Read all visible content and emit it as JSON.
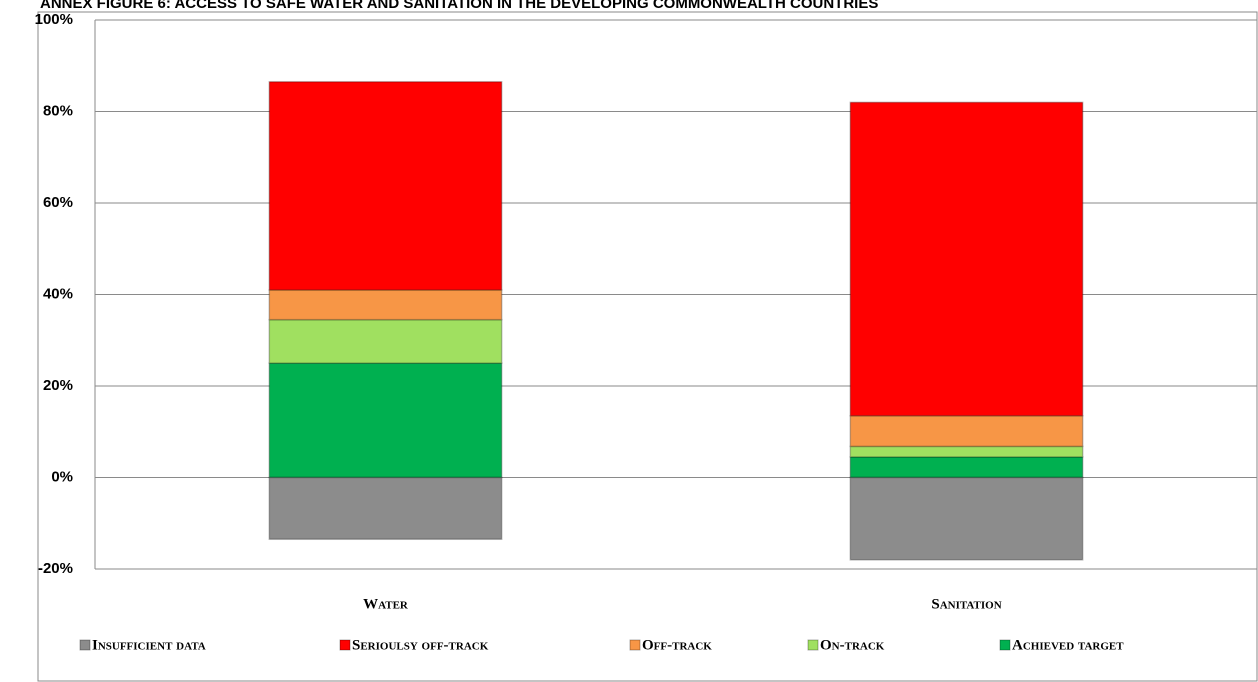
{
  "chart_data": {
    "type": "stacked_bar",
    "title": "ANNEX FIGURE 6: ACCESS TO SAFE WATER AND SANITATION IN THE DEVELOPING COMMONWEALTH COUNTRIES",
    "categories": [
      "Water",
      "Sanitation"
    ],
    "series": [
      {
        "name": "Insufficient data",
        "color": "#8c8c8c",
        "values": [
          -13.5,
          -18
        ]
      },
      {
        "name": "Serioulsy off-track",
        "color": "#ff0000",
        "values": [
          45.5,
          68.5
        ]
      },
      {
        "name": "Off-track",
        "color": "#f79646",
        "values": [
          6.5,
          6.7
        ]
      },
      {
        "name": "On-track",
        "color": "#a0e060",
        "values": [
          9.5,
          2.3
        ]
      },
      {
        "name": "Achieved target",
        "color": "#00b050",
        "values": [
          25,
          4.5
        ]
      }
    ],
    "ylim": [
      -20,
      100
    ],
    "yticks": [
      {
        "value": -20,
        "label": "-20%"
      },
      {
        "value": 0,
        "label": "0%"
      },
      {
        "value": 20,
        "label": "20%"
      },
      {
        "value": 40,
        "label": "40%"
      },
      {
        "value": 60,
        "label": "60%"
      },
      {
        "value": 80,
        "label": "80%"
      },
      {
        "value": 100,
        "label": "100%"
      }
    ],
    "grid": true,
    "legend": "bottom"
  }
}
